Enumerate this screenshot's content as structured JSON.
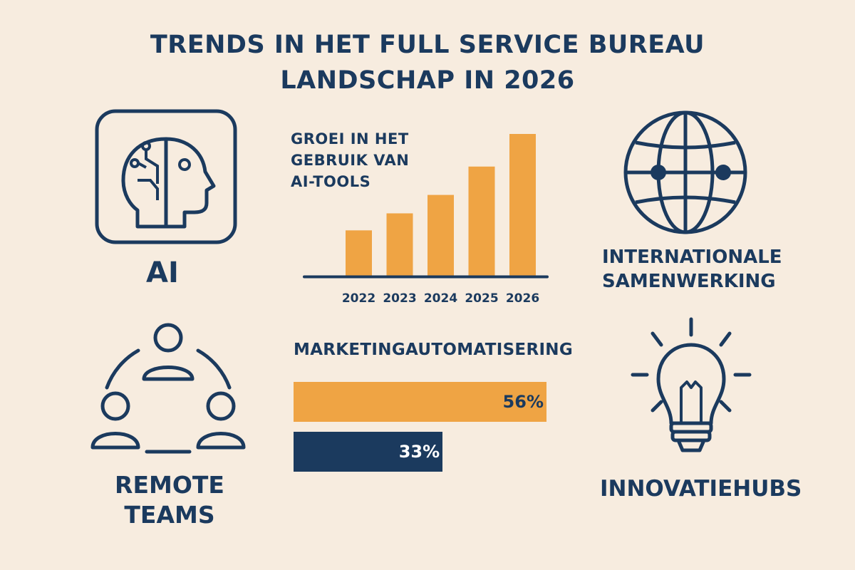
{
  "title": {
    "line1": "TRENDS IN HET FULL SERVICE BUREAU",
    "line2": "LANDSCHAP IN 2026"
  },
  "colors": {
    "navy": "#1b3a5e",
    "orange": "#efa444",
    "background": "#f7ecdf"
  },
  "tiles": {
    "ai": {
      "icon": "ai-head-icon",
      "label": "AI"
    },
    "international": {
      "icon": "globe-icon",
      "label_line1": "INTERNATIONALE",
      "label_line2": "SAMENWERKING"
    },
    "remote": {
      "icon": "team-circle-icon",
      "label_line1": "REMOTE",
      "label_line2": "TEAMS"
    },
    "innovation": {
      "icon": "lightbulb-icon",
      "label": "INNOVATIEHUBS"
    }
  },
  "chart_data": [
    {
      "type": "bar",
      "title_lines": [
        "GROEI IN HET",
        "GEBRUIK VAN",
        "AI-TOOLS"
      ],
      "categories": [
        "2022",
        "2023",
        "2024",
        "2025",
        "2026"
      ],
      "values": [
        32,
        44,
        57,
        77,
        100
      ],
      "ylim": [
        0,
        100
      ],
      "color": "#efa444",
      "grid": false
    },
    {
      "type": "bar",
      "orientation": "horizontal",
      "title": "MARKETINGAUTOMATISERING",
      "values": [
        56,
        33
      ],
      "labels": [
        "56%",
        "33%"
      ],
      "colors": [
        "#efa444",
        "#1b3a5e"
      ],
      "label_colors": [
        "#1b3a5e",
        "#ffffff"
      ]
    }
  ]
}
